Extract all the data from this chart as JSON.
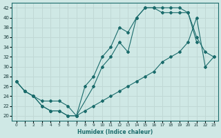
{
  "xlabel": "Humidex (Indice chaleur)",
  "xlim": [
    -0.5,
    23.5
  ],
  "ylim": [
    19,
    43
  ],
  "yticks": [
    20,
    22,
    24,
    26,
    28,
    30,
    32,
    34,
    36,
    38,
    40,
    42
  ],
  "xticks": [
    0,
    1,
    2,
    3,
    4,
    5,
    6,
    7,
    8,
    9,
    10,
    11,
    12,
    13,
    14,
    15,
    16,
    17,
    18,
    19,
    20,
    21,
    22,
    23
  ],
  "bg_color": "#cfe8e5",
  "grid_color": "#c0d8d5",
  "line_color": "#1a6b6b",
  "line1_x": [
    0,
    1,
    2,
    3,
    4,
    5,
    6,
    7,
    8,
    9,
    10,
    11,
    12,
    13,
    14,
    15,
    16,
    17,
    18,
    19,
    20,
    21,
    22,
    23
  ],
  "line1_y": [
    27,
    25,
    24,
    22,
    21,
    21,
    20,
    20,
    26,
    28,
    32,
    34,
    38,
    37,
    40,
    42,
    42,
    42,
    42,
    42,
    41,
    36,
    33,
    32
  ],
  "line2_x": [
    0,
    1,
    2,
    3,
    4,
    5,
    6,
    7,
    9,
    10,
    11,
    12,
    13,
    14,
    15,
    16,
    17,
    18,
    19,
    20,
    21
  ],
  "line2_y": [
    27,
    25,
    24,
    22,
    21,
    21,
    20,
    20,
    26,
    30,
    32,
    35,
    33,
    40,
    42,
    42,
    41,
    41,
    41,
    41,
    35
  ],
  "line3_x": [
    0,
    1,
    2,
    3,
    4,
    5,
    6,
    7,
    8,
    9,
    10,
    11,
    12,
    13,
    14,
    15,
    16,
    17,
    18,
    19,
    20,
    21,
    22,
    23
  ],
  "line3_y": [
    27,
    25,
    24,
    23,
    23,
    23,
    22,
    20,
    21,
    22,
    23,
    24,
    25,
    26,
    27,
    28,
    29,
    31,
    32,
    33,
    35,
    40,
    30,
    32
  ]
}
